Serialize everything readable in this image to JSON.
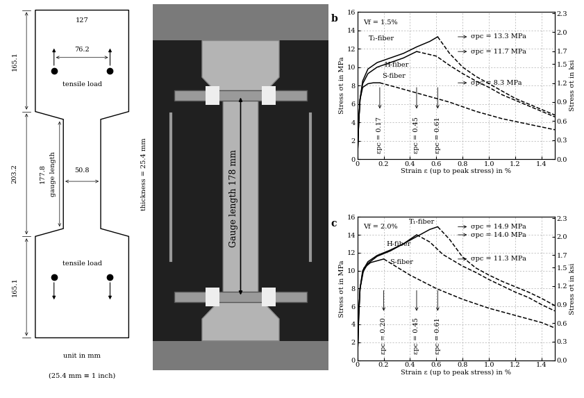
{
  "specimen": {
    "dimensions": {
      "grip_length": 165.1,
      "total_width": 127,
      "pin_spacing": 76.2,
      "middle_length": 203.2,
      "gauge_length": 177.8,
      "gauge_width": 50.8
    },
    "texts": {
      "load": "tensile load",
      "gauge": "gauge length",
      "thickness": "thickness = 25.4 mm",
      "unit": "unit in mm",
      "conversion": "(25.4 mm ≡ 1 inch)"
    }
  },
  "photo": {
    "label": "Gauge length 178 mm"
  },
  "chart_data": [
    {
      "type": "line",
      "panel": "b",
      "annotation": "Vf = 1.5%",
      "xlabel": "Strain ε (up to peak stress) in %",
      "ylabel": "Stress σt in MPa",
      "y2label": "Stress σt in ksi",
      "xlim": [
        0,
        1.5
      ],
      "xticks": [
        0,
        0.2,
        0.4,
        0.6,
        0.8,
        1.0,
        1.2,
        1.4
      ],
      "ylim": [
        0,
        16
      ],
      "yticks": [
        0,
        2,
        4,
        6,
        8,
        10,
        12,
        14,
        16
      ],
      "y2lim": [
        0,
        2.32
      ],
      "y2ticks": [
        0.0,
        0.3,
        0.6,
        0.9,
        1.2,
        1.5,
        1.7,
        2.0,
        2.3
      ],
      "grid": true,
      "series": [
        {
          "name": "T₂-fiber",
          "color": "#000000",
          "line_style": "solid",
          "x": [
            0,
            0.01,
            0.02,
            0.04,
            0.08,
            0.15,
            0.25,
            0.35,
            0.45,
            0.55,
            0.61
          ],
          "values": [
            0,
            4,
            6.5,
            8.5,
            9.8,
            10.5,
            11.0,
            11.5,
            12.2,
            12.8,
            13.3
          ]
        },
        {
          "color": "#000000",
          "line_style": "dashed",
          "x": [
            0.61,
            0.7,
            0.8,
            0.9,
            1.0,
            1.1,
            1.2,
            1.3,
            1.4,
            1.5
          ],
          "values": [
            13.3,
            11.5,
            10.0,
            9.0,
            8.2,
            7.4,
            6.6,
            6.0,
            5.4,
            4.8
          ]
        },
        {
          "name": "H-fiber",
          "color": "#000000",
          "line_style": "solid",
          "x": [
            0,
            0.01,
            0.02,
            0.04,
            0.08,
            0.15,
            0.25,
            0.35,
            0.45
          ],
          "values": [
            0,
            4,
            6.5,
            8.2,
            9.3,
            10.0,
            10.5,
            11.0,
            11.7
          ]
        },
        {
          "color": "#000000",
          "line_style": "dashed",
          "x": [
            0.45,
            0.6,
            0.7,
            0.8,
            0.9,
            1.0,
            1.1,
            1.2,
            1.3,
            1.4,
            1.5
          ],
          "values": [
            11.7,
            11.2,
            10.2,
            9.3,
            8.5,
            7.8,
            7.0,
            6.4,
            5.8,
            5.2,
            4.6
          ]
        },
        {
          "name": "S-fiber",
          "color": "#000000",
          "line_style": "solid",
          "x": [
            0,
            0.01,
            0.02,
            0.04,
            0.08,
            0.12,
            0.17
          ],
          "values": [
            0,
            4,
            6.5,
            7.8,
            8.2,
            8.3,
            8.3
          ]
        },
        {
          "color": "#000000",
          "line_style": "dashed",
          "x": [
            0.17,
            0.3,
            0.5,
            0.7,
            0.9,
            1.1,
            1.3,
            1.5
          ],
          "values": [
            8.3,
            7.8,
            7.0,
            6.2,
            5.2,
            4.4,
            3.8,
            3.2
          ]
        }
      ],
      "annotations": [
        {
          "text": "σpc = 13.3 MPa",
          "y": 13.3
        },
        {
          "text": "σpc = 11.7 MPa",
          "y": 11.7
        },
        {
          "text": "σpc = 8.3 MPa",
          "y": 8.3
        },
        {
          "text": "εpc = 0.17",
          "x": 0.17
        },
        {
          "text": "εpc = 0.45",
          "x": 0.45
        },
        {
          "text": "εpc = 0.61",
          "x": 0.61
        }
      ]
    },
    {
      "type": "line",
      "panel": "c",
      "annotation": "Vf = 2.0%",
      "xlabel": "Strain ε (up to peak stress) in %",
      "ylabel": "Stress σt in MPa",
      "y2label": "Stress σt in ksi",
      "xlim": [
        0,
        1.5
      ],
      "xticks": [
        0,
        0.2,
        0.4,
        0.6,
        0.8,
        1.0,
        1.2,
        1.4
      ],
      "ylim": [
        0,
        16
      ],
      "yticks": [
        0,
        2,
        4,
        6,
        8,
        10,
        12,
        14,
        16
      ],
      "y2lim": [
        0,
        2.32
      ],
      "y2ticks": [
        0.0,
        0.3,
        0.6,
        0.9,
        1.2,
        1.5,
        1.7,
        2.0,
        2.3
      ],
      "grid": true,
      "series": [
        {
          "name": "T₁-fiber",
          "color": "#000000",
          "line_style": "solid",
          "x": [
            0,
            0.01,
            0.02,
            0.04,
            0.08,
            0.15,
            0.25,
            0.35,
            0.45,
            0.55,
            0.61
          ],
          "values": [
            0,
            5,
            8,
            10,
            11,
            11.7,
            12.3,
            13.0,
            13.8,
            14.6,
            14.9
          ]
        },
        {
          "color": "#000000",
          "line_style": "dashed",
          "x": [
            0.61,
            0.7,
            0.8,
            0.9,
            1.0,
            1.1,
            1.2,
            1.3,
            1.4,
            1.5
          ],
          "values": [
            14.9,
            13.5,
            11.5,
            10.3,
            9.5,
            8.8,
            8.2,
            7.6,
            6.9,
            6.1
          ]
        },
        {
          "name": "H-fiber",
          "color": "#000000",
          "line_style": "solid",
          "x": [
            0,
            0.01,
            0.02,
            0.04,
            0.08,
            0.15,
            0.25,
            0.35,
            0.45
          ],
          "values": [
            0,
            5,
            8,
            9.8,
            10.8,
            11.6,
            12.2,
            13.0,
            14.0
          ]
        },
        {
          "color": "#000000",
          "line_style": "dashed",
          "x": [
            0.45,
            0.55,
            0.65,
            0.8,
            0.9,
            1.0,
            1.1,
            1.2,
            1.3,
            1.4,
            1.5
          ],
          "values": [
            14.0,
            13.2,
            11.8,
            10.5,
            9.8,
            9.0,
            8.3,
            7.6,
            7.0,
            6.2,
            5.5
          ]
        },
        {
          "name": "S-fiber",
          "color": "#000000",
          "line_style": "solid",
          "x": [
            0,
            0.01,
            0.02,
            0.05,
            0.1,
            0.15,
            0.2
          ],
          "values": [
            0,
            5,
            8,
            10.3,
            10.9,
            11.1,
            11.3
          ]
        },
        {
          "color": "#000000",
          "line_style": "dashed",
          "x": [
            0.2,
            0.4,
            0.6,
            0.8,
            1.0,
            1.2,
            1.4,
            1.5
          ],
          "values": [
            11.3,
            9.5,
            8.0,
            6.8,
            5.8,
            5.0,
            4.2,
            3.6
          ]
        }
      ],
      "annotations": [
        {
          "text": "σpc = 14.9 MPa",
          "y": 14.9
        },
        {
          "text": "σpc = 14.0 MPa",
          "y": 14.0
        },
        {
          "text": "σpc = 11.3 MPa",
          "y": 11.3
        },
        {
          "text": "εpc = 0.20",
          "x": 0.2
        },
        {
          "text": "εpc = 0.45",
          "x": 0.45
        },
        {
          "text": "εpc = 0.61",
          "x": 0.61
        }
      ]
    }
  ]
}
